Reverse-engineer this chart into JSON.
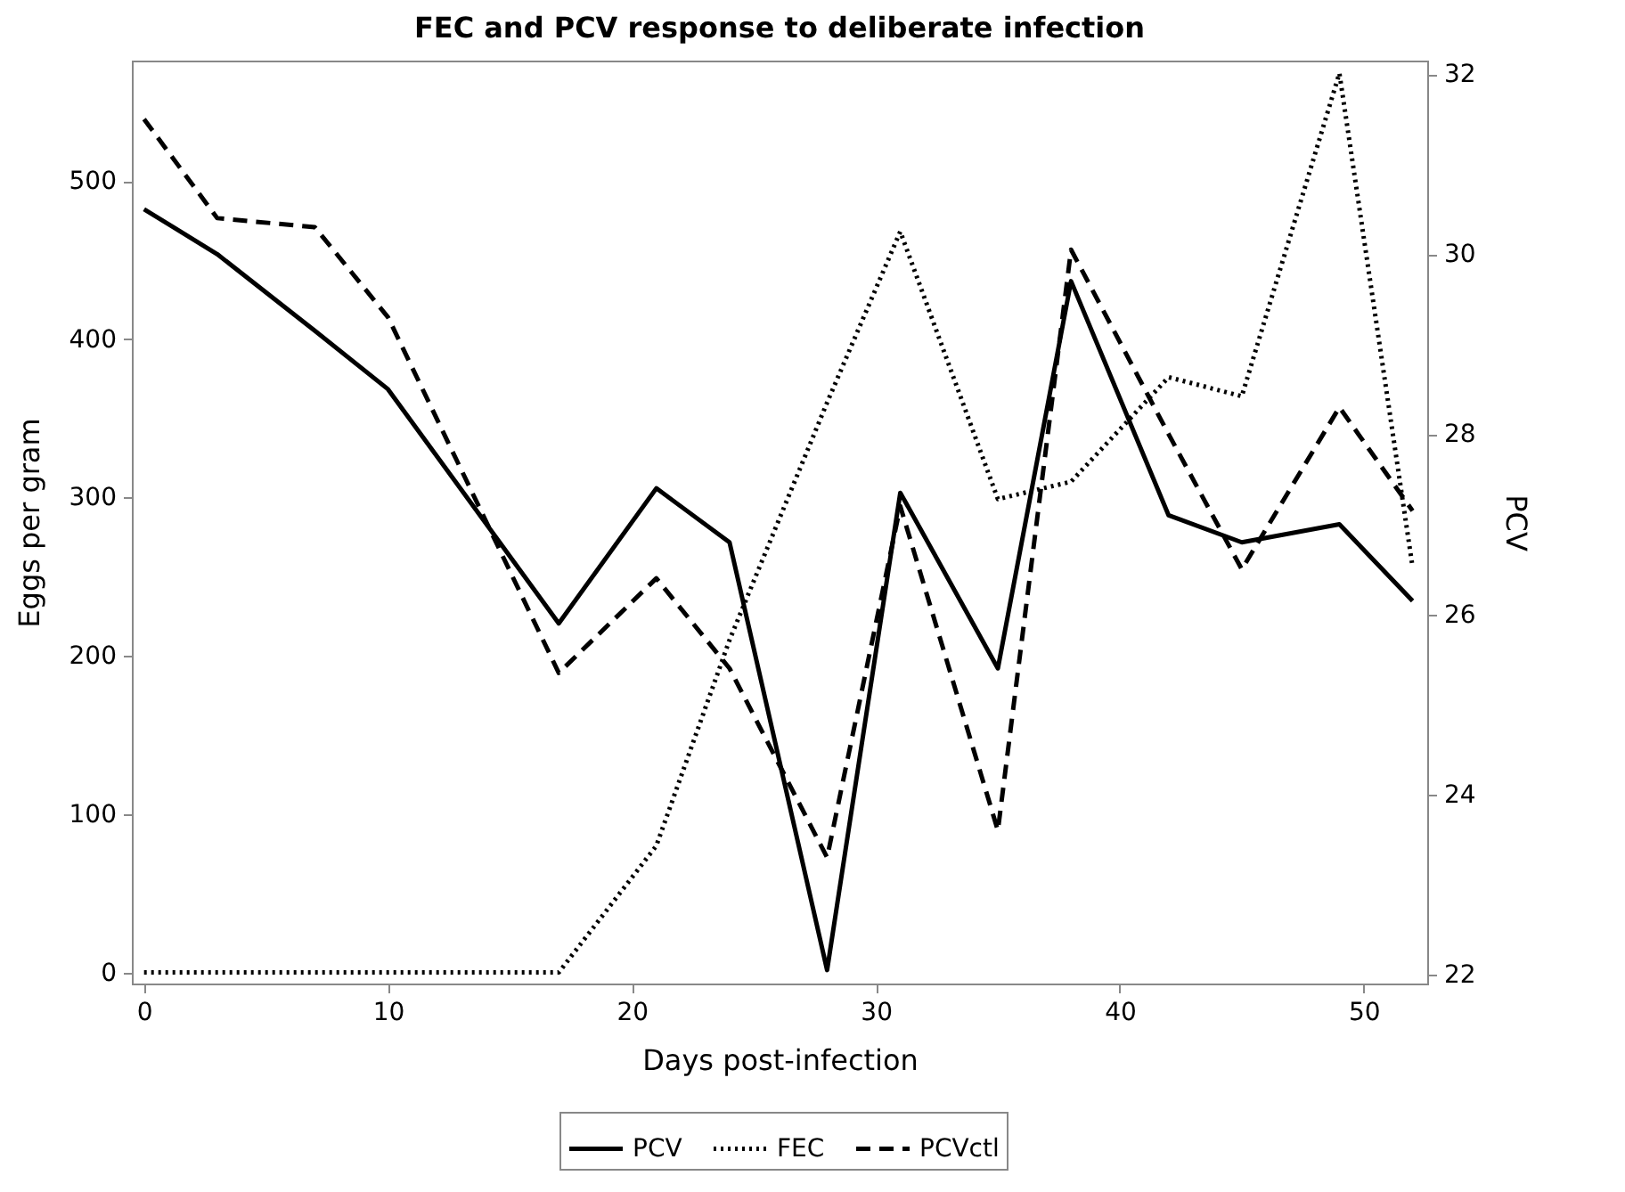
{
  "chart_data": {
    "type": "line",
    "title": "FEC and PCV  response to deliberate infection",
    "xlabel": "Days post-infection",
    "ylabel": "Eggs per gram",
    "y2label": "PCV",
    "x": [
      0,
      3,
      7,
      10,
      17,
      21,
      24,
      28,
      31,
      35,
      38,
      42,
      45,
      49,
      52
    ],
    "series": [
      {
        "name": "PCV",
        "color": "#000000",
        "line_style": "solid",
        "axis": "y2",
        "values": [
          30.5,
          30.0,
          29.15,
          28.5,
          25.9,
          27.4,
          26.8,
          22.05,
          27.35,
          25.4,
          29.7,
          27.1,
          26.8,
          27.0,
          26.15
        ]
      },
      {
        "name": "FEC",
        "color": "#000000",
        "line_style": "dotted",
        "values": [
          0,
          0,
          0,
          0,
          0,
          80,
          210,
          360,
          468,
          299,
          310,
          376,
          364,
          568,
          256
        ]
      },
      {
        "name": "PCVctl",
        "color": "#000000",
        "line_style": "dashed",
        "axis": "y2",
        "values": [
          31.5,
          30.4,
          30.3,
          29.3,
          25.35,
          26.4,
          25.4,
          23.3,
          27.2,
          23.6,
          30.05,
          28.0,
          26.5,
          28.3,
          27.15
        ]
      }
    ],
    "xlim": [
      -0.5,
      52.6
    ],
    "xticks": [
      0,
      10,
      20,
      30,
      40,
      50
    ],
    "ylim": [
      -7,
      576
    ],
    "yticks": [
      0,
      100,
      200,
      300,
      400,
      500
    ],
    "y2lim": [
      21.9,
      32.15
    ],
    "y2ticks": [
      22,
      24,
      26,
      28,
      30,
      32
    ],
    "grid": false,
    "legend": "bottom",
    "marker": "none"
  }
}
